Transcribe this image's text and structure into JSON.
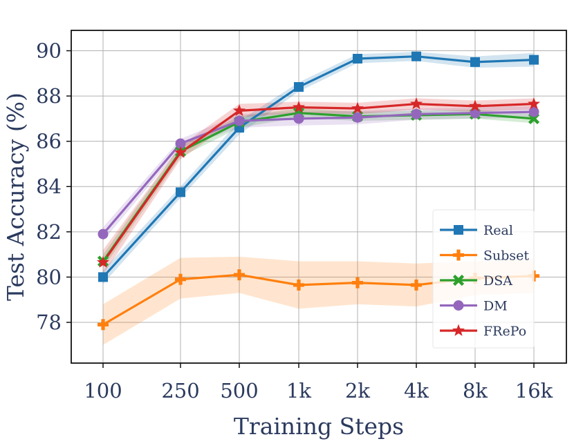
{
  "chart_data": {
    "type": "line",
    "xlabel": "Training Steps",
    "ylabel": "Test Accuracy (%)",
    "x_tick_labels": [
      "100",
      "250",
      "500",
      "1k",
      "2k",
      "4k",
      "8k",
      "16k"
    ],
    "x": [
      100,
      250,
      500,
      1000,
      2000,
      4000,
      8000,
      16000
    ],
    "x_scale": "log",
    "y_ticks": [
      "78",
      "80",
      "82",
      "84",
      "86",
      "88",
      "90"
    ],
    "y_tick_values": [
      78,
      80,
      82,
      84,
      86,
      88,
      90
    ],
    "ylim": [
      76.2,
      90.9
    ],
    "grid": true,
    "legend_position": "lower-right",
    "series": [
      {
        "name": "Real",
        "color": "#1f77b4",
        "marker": "square",
        "values": [
          80.0,
          83.75,
          86.6,
          88.4,
          89.65,
          89.75,
          89.5,
          89.6
        ],
        "band_lower": [
          79.7,
          83.5,
          86.3,
          88.2,
          89.45,
          89.55,
          89.25,
          89.3
        ],
        "band_upper": [
          80.3,
          84.0,
          86.9,
          88.6,
          89.85,
          89.95,
          89.75,
          89.9
        ]
      },
      {
        "name": "Subset",
        "color": "#ff7f0e",
        "marker": "plus",
        "values": [
          77.9,
          79.9,
          80.1,
          79.65,
          79.75,
          79.65,
          79.95,
          80.05
        ],
        "band_lower": [
          77.0,
          79.05,
          79.3,
          78.6,
          78.8,
          78.7,
          79.2,
          79.3
        ],
        "band_upper": [
          78.8,
          80.85,
          80.9,
          80.7,
          80.7,
          80.6,
          80.7,
          80.8
        ]
      },
      {
        "name": "DSA",
        "color": "#2ca02c",
        "marker": "x",
        "values": [
          80.7,
          85.55,
          86.85,
          87.25,
          87.1,
          87.15,
          87.2,
          87.0
        ],
        "band_lower": [
          80.4,
          85.3,
          86.6,
          87.05,
          86.9,
          86.95,
          87.0,
          86.8
        ],
        "band_upper": [
          81.0,
          85.8,
          87.1,
          87.45,
          87.3,
          87.35,
          87.4,
          87.2
        ]
      },
      {
        "name": "DM",
        "color": "#9467bd",
        "marker": "circle",
        "values": [
          81.9,
          85.9,
          86.9,
          87.0,
          87.05,
          87.2,
          87.25,
          87.3
        ],
        "band_lower": [
          81.6,
          85.7,
          86.6,
          86.7,
          86.75,
          86.95,
          87.0,
          87.05
        ],
        "band_upper": [
          82.2,
          86.1,
          87.2,
          87.3,
          87.35,
          87.45,
          87.5,
          87.55
        ]
      },
      {
        "name": "FRePo",
        "color": "#d62728",
        "marker": "star",
        "values": [
          80.65,
          85.5,
          87.35,
          87.5,
          87.45,
          87.65,
          87.55,
          87.65
        ],
        "band_lower": [
          80.1,
          85.2,
          87.05,
          87.25,
          87.2,
          87.4,
          87.3,
          87.4
        ],
        "band_upper": [
          81.2,
          85.8,
          87.65,
          87.75,
          87.7,
          87.9,
          87.8,
          87.9
        ]
      }
    ]
  }
}
